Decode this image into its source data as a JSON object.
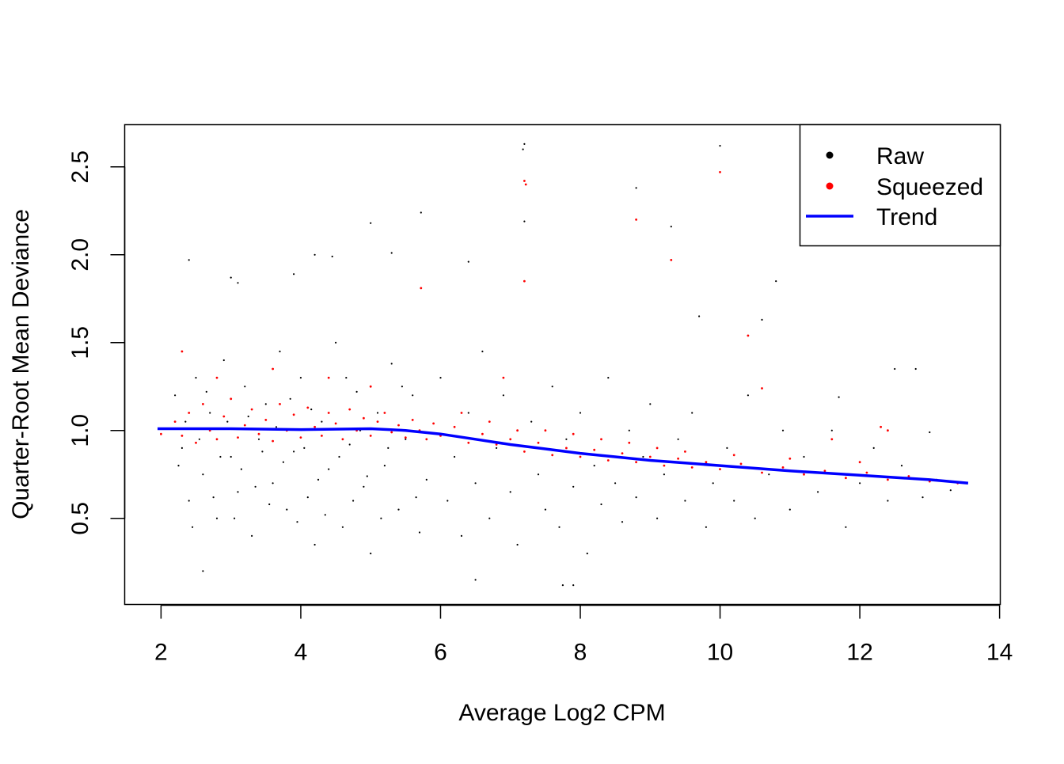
{
  "chart_data": {
    "type": "scatter",
    "title": "",
    "xlabel": "Average Log2 CPM",
    "ylabel": "Quarter-Root Mean Deviance",
    "xlim": [
      1.48,
      14.01
    ],
    "ylim": [
      0.01,
      2.74
    ],
    "xticks": [
      2,
      4,
      6,
      8,
      10,
      12,
      14
    ],
    "xtick_labels": [
      "2",
      "4",
      "6",
      "8",
      "10",
      "12",
      "14"
    ],
    "yticks": [
      0.5,
      1.0,
      1.5,
      2.0,
      2.5
    ],
    "ytick_labels": [
      "0.5",
      "1.0",
      "1.5",
      "2.0",
      "2.5"
    ],
    "grid": false,
    "legend": {
      "placement": "top-right",
      "entries": [
        {
          "label": "Raw",
          "symbol": "point",
          "color": "#000000"
        },
        {
          "label": "Squeezed",
          "symbol": "point",
          "color": "#ff0000"
        },
        {
          "label": "Trend",
          "symbol": "line",
          "color": "#0000ff"
        }
      ]
    },
    "series": [
      {
        "name": "Raw",
        "color": "#000000",
        "points": [
          [
            7.2,
            2.63
          ],
          [
            7.18,
            2.6
          ],
          [
            10.0,
            2.62
          ],
          [
            5.72,
            2.24
          ],
          [
            8.8,
            2.38
          ],
          [
            7.2,
            2.19
          ],
          [
            5.0,
            2.18
          ],
          [
            2.4,
            1.97
          ],
          [
            4.2,
            2.0
          ],
          [
            4.45,
            1.99
          ],
          [
            5.3,
            2.01
          ],
          [
            3.0,
            1.87
          ],
          [
            3.1,
            1.84
          ],
          [
            9.3,
            2.16
          ],
          [
            10.8,
            1.85
          ],
          [
            6.4,
            1.96
          ],
          [
            3.9,
            1.89
          ],
          [
            9.7,
            1.65
          ],
          [
            10.6,
            1.63
          ],
          [
            12.5,
            1.35
          ],
          [
            12.8,
            1.35
          ],
          [
            11.7,
            1.19
          ],
          [
            13.0,
            0.99
          ],
          [
            2.2,
            1.2
          ],
          [
            2.3,
            0.9
          ],
          [
            2.4,
            0.6
          ],
          [
            2.5,
            1.3
          ],
          [
            2.6,
            0.75
          ],
          [
            2.7,
            1.1
          ],
          [
            2.8,
            0.5
          ],
          [
            2.9,
            1.4
          ],
          [
            3.0,
            0.85
          ],
          [
            3.1,
            0.65
          ],
          [
            3.2,
            1.25
          ],
          [
            3.3,
            0.4
          ],
          [
            3.4,
            0.95
          ],
          [
            3.5,
            1.15
          ],
          [
            3.6,
            0.7
          ],
          [
            3.7,
            1.45
          ],
          [
            3.8,
            0.55
          ],
          [
            3.9,
            0.88
          ],
          [
            4.0,
            1.3
          ],
          [
            4.1,
            0.62
          ],
          [
            4.2,
            0.35
          ],
          [
            4.3,
            1.05
          ],
          [
            4.4,
            0.78
          ],
          [
            4.5,
            1.5
          ],
          [
            4.6,
            0.45
          ],
          [
            4.7,
            0.92
          ],
          [
            4.8,
            1.22
          ],
          [
            4.9,
            0.68
          ],
          [
            5.0,
            0.3
          ],
          [
            5.1,
            1.1
          ],
          [
            5.2,
            0.8
          ],
          [
            5.3,
            1.38
          ],
          [
            5.4,
            0.55
          ],
          [
            5.5,
            0.95
          ],
          [
            5.6,
            1.2
          ],
          [
            5.7,
            0.42
          ],
          [
            5.8,
            0.72
          ],
          [
            2.25,
            0.8
          ],
          [
            2.35,
            1.05
          ],
          [
            2.45,
            0.45
          ],
          [
            2.55,
            0.95
          ],
          [
            2.65,
            1.22
          ],
          [
            2.75,
            0.62
          ],
          [
            2.85,
            0.85
          ],
          [
            2.95,
            1.05
          ],
          [
            3.05,
            0.5
          ],
          [
            3.15,
            0.78
          ],
          [
            3.25,
            1.08
          ],
          [
            3.35,
            0.68
          ],
          [
            3.45,
            0.88
          ],
          [
            3.55,
            0.58
          ],
          [
            3.65,
            1.02
          ],
          [
            3.75,
            0.82
          ],
          [
            3.85,
            1.18
          ],
          [
            3.95,
            0.48
          ],
          [
            4.05,
            0.9
          ],
          [
            4.15,
            1.12
          ],
          [
            4.25,
            0.72
          ],
          [
            4.35,
            0.52
          ],
          [
            4.55,
            0.85
          ],
          [
            4.65,
            1.3
          ],
          [
            4.75,
            0.6
          ],
          [
            4.85,
            1.0
          ],
          [
            4.95,
            0.74
          ],
          [
            5.15,
            0.5
          ],
          [
            5.25,
            0.9
          ],
          [
            5.45,
            1.25
          ],
          [
            5.65,
            0.62
          ],
          [
            6.0,
            1.3
          ],
          [
            6.1,
            0.6
          ],
          [
            6.2,
            0.85
          ],
          [
            6.3,
            0.4
          ],
          [
            6.4,
            1.1
          ],
          [
            6.5,
            0.7
          ],
          [
            6.6,
            1.45
          ],
          [
            6.7,
            0.5
          ],
          [
            6.8,
            0.9
          ],
          [
            6.9,
            1.2
          ],
          [
            7.0,
            0.65
          ],
          [
            7.1,
            0.35
          ],
          [
            7.3,
            1.05
          ],
          [
            7.4,
            0.75
          ],
          [
            7.5,
            0.55
          ],
          [
            7.6,
            1.25
          ],
          [
            7.7,
            0.45
          ],
          [
            7.8,
            0.95
          ],
          [
            7.9,
            0.68
          ],
          [
            8.0,
            1.1
          ],
          [
            8.1,
            0.3
          ],
          [
            8.2,
            0.8
          ],
          [
            8.3,
            0.58
          ],
          [
            8.4,
            1.3
          ],
          [
            8.5,
            0.7
          ],
          [
            8.6,
            0.48
          ],
          [
            8.7,
            1.0
          ],
          [
            8.8,
            0.62
          ],
          [
            8.9,
            0.85
          ],
          [
            9.0,
            1.15
          ],
          [
            9.1,
            0.5
          ],
          [
            9.2,
            0.75
          ],
          [
            9.4,
            0.95
          ],
          [
            9.5,
            0.6
          ],
          [
            9.6,
            1.1
          ],
          [
            9.8,
            0.45
          ],
          [
            9.9,
            0.7
          ],
          [
            10.1,
            0.9
          ],
          [
            10.2,
            0.6
          ],
          [
            10.4,
            1.2
          ],
          [
            10.5,
            0.5
          ],
          [
            10.7,
            0.75
          ],
          [
            10.9,
            1.0
          ],
          [
            11.0,
            0.55
          ],
          [
            11.2,
            0.85
          ],
          [
            11.4,
            0.65
          ],
          [
            11.6,
            1.0
          ],
          [
            11.8,
            0.45
          ],
          [
            12.0,
            0.7
          ],
          [
            12.2,
            0.9
          ],
          [
            12.4,
            0.6
          ],
          [
            12.6,
            0.8
          ],
          [
            12.9,
            0.62
          ],
          [
            13.1,
            0.72
          ],
          [
            13.3,
            0.66
          ],
          [
            13.5,
            0.7
          ],
          [
            7.75,
            0.12
          ],
          [
            7.9,
            0.12
          ],
          [
            6.5,
            0.15
          ],
          [
            2.6,
            0.2
          ]
        ]
      },
      {
        "name": "Squeezed",
        "color": "#ff0000",
        "points": [
          [
            7.2,
            2.42
          ],
          [
            7.22,
            2.4
          ],
          [
            10.0,
            2.47
          ],
          [
            8.8,
            2.2
          ],
          [
            9.3,
            1.97
          ],
          [
            5.72,
            1.81
          ],
          [
            7.2,
            1.85
          ],
          [
            10.4,
            1.54
          ],
          [
            10.6,
            1.24
          ],
          [
            6.9,
            1.3
          ],
          [
            2.3,
            1.45
          ],
          [
            2.8,
            1.3
          ],
          [
            3.6,
            1.35
          ],
          [
            4.4,
            1.3
          ],
          [
            5.0,
            1.25
          ],
          [
            2.0,
            0.98
          ],
          [
            2.2,
            1.05
          ],
          [
            2.3,
            0.97
          ],
          [
            2.4,
            1.1
          ],
          [
            2.5,
            0.93
          ],
          [
            2.6,
            1.15
          ],
          [
            2.7,
            1.0
          ],
          [
            2.8,
            0.95
          ],
          [
            2.9,
            1.08
          ],
          [
            3.0,
            1.18
          ],
          [
            3.1,
            0.96
          ],
          [
            3.2,
            1.03
          ],
          [
            3.3,
            1.12
          ],
          [
            3.4,
            0.98
          ],
          [
            3.5,
            1.06
          ],
          [
            3.6,
            0.94
          ],
          [
            3.7,
            1.15
          ],
          [
            3.8,
            1.0
          ],
          [
            3.9,
            1.09
          ],
          [
            4.0,
            0.96
          ],
          [
            4.1,
            1.13
          ],
          [
            4.2,
            1.02
          ],
          [
            4.3,
            0.97
          ],
          [
            4.4,
            1.1
          ],
          [
            4.5,
            1.04
          ],
          [
            4.6,
            0.95
          ],
          [
            4.7,
            1.12
          ],
          [
            4.8,
            1.0
          ],
          [
            4.9,
            1.07
          ],
          [
            5.0,
            0.97
          ],
          [
            5.1,
            1.05
          ],
          [
            5.2,
            1.1
          ],
          [
            5.3,
            0.99
          ],
          [
            5.4,
            1.03
          ],
          [
            5.5,
            0.96
          ],
          [
            5.6,
            1.06
          ],
          [
            5.7,
            1.0
          ],
          [
            5.8,
            0.95
          ],
          [
            5.9,
            1.04
          ],
          [
            6.0,
            0.97
          ],
          [
            6.2,
            1.02
          ],
          [
            6.4,
            0.93
          ],
          [
            6.6,
            0.98
          ],
          [
            6.8,
            0.92
          ],
          [
            7.0,
            0.95
          ],
          [
            7.2,
            0.88
          ],
          [
            7.4,
            0.93
          ],
          [
            7.6,
            0.86
          ],
          [
            7.8,
            0.9
          ],
          [
            8.0,
            0.85
          ],
          [
            8.2,
            0.89
          ],
          [
            8.4,
            0.83
          ],
          [
            8.6,
            0.87
          ],
          [
            8.8,
            0.82
          ],
          [
            9.0,
            0.85
          ],
          [
            9.2,
            0.8
          ],
          [
            9.4,
            0.84
          ],
          [
            9.6,
            0.79
          ],
          [
            9.8,
            0.82
          ],
          [
            10.0,
            0.78
          ],
          [
            10.3,
            0.81
          ],
          [
            10.6,
            0.76
          ],
          [
            10.9,
            0.79
          ],
          [
            11.2,
            0.75
          ],
          [
            11.5,
            0.77
          ],
          [
            11.8,
            0.73
          ],
          [
            12.1,
            0.76
          ],
          [
            12.4,
            0.72
          ],
          [
            12.7,
            0.74
          ],
          [
            13.0,
            0.71
          ],
          [
            13.4,
            0.7
          ],
          [
            6.3,
            1.1
          ],
          [
            6.7,
            1.05
          ],
          [
            7.1,
            1.0
          ],
          [
            7.5,
            1.0
          ],
          [
            7.9,
            0.98
          ],
          [
            8.3,
            0.95
          ],
          [
            8.7,
            0.93
          ],
          [
            9.1,
            0.9
          ],
          [
            9.5,
            0.88
          ],
          [
            10.2,
            0.86
          ],
          [
            11.0,
            0.84
          ],
          [
            12.0,
            0.82
          ],
          [
            12.4,
            1.0
          ],
          [
            11.6,
            0.95
          ],
          [
            12.3,
            1.02
          ]
        ]
      },
      {
        "name": "Trend",
        "type": "line",
        "color": "#0000ff",
        "points": [
          [
            1.95,
            1.01
          ],
          [
            3.0,
            1.01
          ],
          [
            4.0,
            1.005
          ],
          [
            5.0,
            1.01
          ],
          [
            5.5,
            1.0
          ],
          [
            6.0,
            0.98
          ],
          [
            6.5,
            0.95
          ],
          [
            7.0,
            0.92
          ],
          [
            7.5,
            0.895
          ],
          [
            8.0,
            0.87
          ],
          [
            8.5,
            0.85
          ],
          [
            9.0,
            0.83
          ],
          [
            9.5,
            0.815
          ],
          [
            10.0,
            0.8
          ],
          [
            11.0,
            0.77
          ],
          [
            12.0,
            0.745
          ],
          [
            13.0,
            0.72
          ],
          [
            13.55,
            0.7
          ]
        ]
      }
    ]
  }
}
